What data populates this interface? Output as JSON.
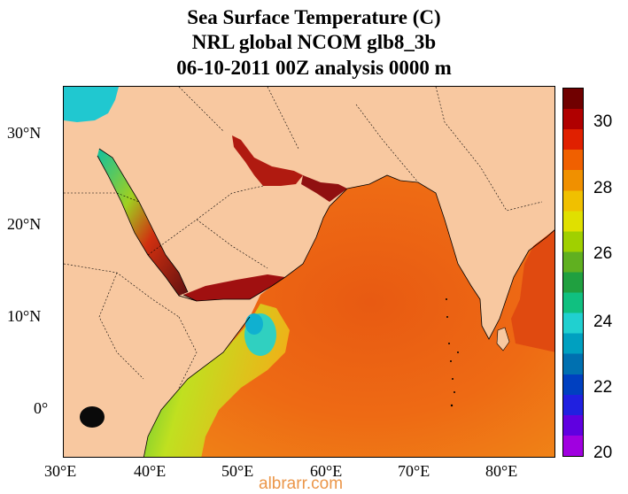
{
  "title": {
    "line1": "Sea Surface Temperature (C)",
    "line2": "NRL global NCOM glb8_3b",
    "line3": "06-10-2011 00Z analysis   0000 m"
  },
  "axes": {
    "lon_labels": [
      "30°E",
      "40°E",
      "50°E",
      "60°E",
      "70°E",
      "80°E"
    ],
    "lat_labels": [
      "30°N",
      "20°N",
      "10°N",
      "0°"
    ]
  },
  "colorbar": {
    "labels": [
      "30",
      "28",
      "26",
      "24",
      "22",
      "20"
    ],
    "min": 20,
    "max": 31,
    "colors": [
      "#a000e0",
      "#6000e0",
      "#2020e0",
      "#0040c0",
      "#0070b0",
      "#00a0c0",
      "#20d0d0",
      "#10c080",
      "#20a040",
      "#60b020",
      "#a0d000",
      "#e0e000",
      "#f0c000",
      "#f09000",
      "#f06000",
      "#e02000",
      "#b00000",
      "#700000"
    ]
  },
  "watermark": "albrarr.com"
}
